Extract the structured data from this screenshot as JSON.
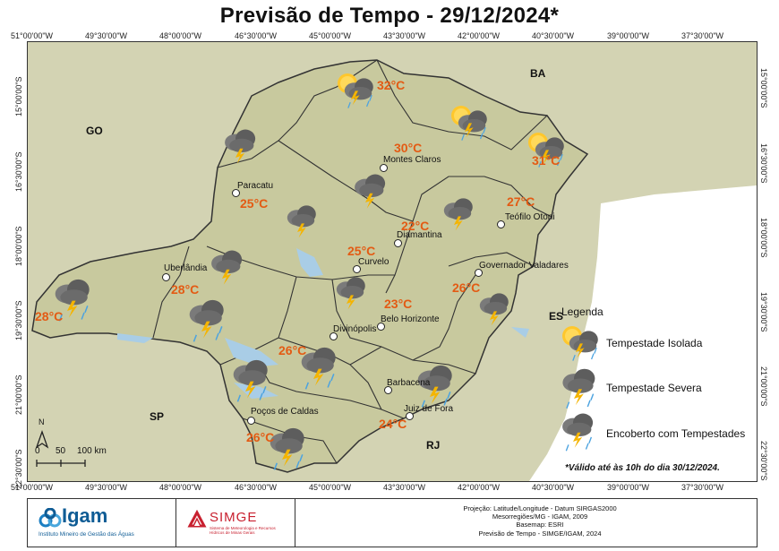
{
  "title": "Previsão de Tempo - 29/12/2024*",
  "longitudes": [
    "51°00'00\"W",
    "49°30'00\"W",
    "48°00'00\"W",
    "46°30'00\"W",
    "45°00'00\"W",
    "43°30'00\"W",
    "42°00'00\"W",
    "40°30'00\"W",
    "39°00'00\"W",
    "37°30'00\"W"
  ],
  "latitudes": [
    "15°00'00\"S",
    "16°30'00\"S",
    "18°00'00\"S",
    "19°30'00\"S",
    "21°00'00\"S",
    "22°30'00\"S"
  ],
  "states": {
    "go": "GO",
    "ba": "BA",
    "sp": "SP",
    "es": "ES",
    "rj": "RJ"
  },
  "temperatures": [
    "32°C",
    "30°C",
    "31°C",
    "25°C",
    "27°C",
    "22°C",
    "25°C",
    "28°C",
    "28°C",
    "23°C",
    "26°C",
    "26°C",
    "24°C",
    "26°C"
  ],
  "cities": [
    "Montes Claros",
    "Paracatu",
    "Teófilo Otoni",
    "Diamantina",
    "Curvelo",
    "Uberlândia",
    "Governador Valadares",
    "Belo Horizonte",
    "Divinópolis",
    "Barbacena",
    "Juiz de Fora",
    "Poços de Caldas"
  ],
  "legend": {
    "title": "Legenda",
    "items": [
      "Tempestade Isolada",
      "Tempestade Severa",
      "Encoberto com Tempestades"
    ]
  },
  "scale": {
    "labels": [
      "0",
      "50",
      "100 km"
    ]
  },
  "north_label": "N",
  "note": "*Válido até às 10h do dia 30/12/2024.",
  "footer": {
    "igam_name": "Igam",
    "igam_sub": "Instituto Mineiro de Gestão das Águas",
    "simge_name": "SIMGE",
    "simge_sub": "Sistema de Meteorologia e Recursos Hídricos de Minas Gerais",
    "credits": [
      "Projeção: Latitude/Longitude - Datum SIRGAS2000",
      "Mesorregiões/MG - IGAM, 2009",
      "Basemap: ESRI",
      "Previsão de Tempo - SIMGE/IGAM, 2024"
    ]
  },
  "colors": {
    "temp": "#e35b14",
    "land": "#c9c9a4",
    "state": "#d8e0b5",
    "border": "#333333",
    "water": "#a9cde6"
  }
}
